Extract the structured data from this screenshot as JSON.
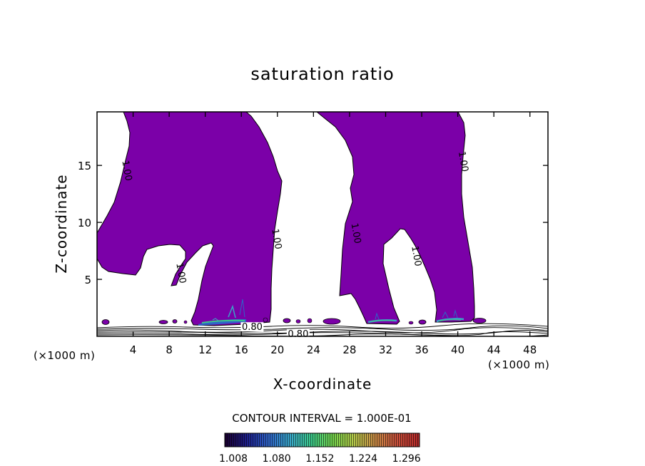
{
  "chart_data": {
    "type": "contour",
    "title": "saturation ratio",
    "xlabel": "X-coordinate",
    "ylabel": "Z-coordinate",
    "x_unit": "(×1000 m)",
    "y_unit": "(×1000 m)",
    "xlim": [
      0,
      50
    ],
    "ylim": [
      0,
      19.7
    ],
    "x_ticks": [
      4,
      8,
      12,
      16,
      20,
      24,
      28,
      32,
      36,
      40,
      44,
      48
    ],
    "x_tick_labels": [
      "4",
      "8",
      "12",
      "16",
      "20",
      "24",
      "28",
      "32",
      "36",
      "40",
      "44",
      "48"
    ],
    "y_ticks": [
      5,
      10,
      15
    ],
    "y_tick_labels": [
      "5",
      "10",
      "15"
    ],
    "fill_color": "#7b00a8",
    "contour_interval_label": "CONTOUR INTERVAL = 1.000E-01",
    "contour_labels": [
      {
        "text": "1.00",
        "x": 3.0,
        "z": 14.5
      },
      {
        "text": "1.00",
        "x": 9.0,
        "z": 5.5
      },
      {
        "text": "1.00",
        "x": 19.6,
        "z": 8.5
      },
      {
        "text": "1.00",
        "x": 28.4,
        "z": 9.0
      },
      {
        "text": "1.00",
        "x": 35.1,
        "z": 7.0
      },
      {
        "text": "1.00",
        "x": 40.3,
        "z": 15.3
      },
      {
        "text": "0.80",
        "x": 17.2,
        "z": 0.8
      },
      {
        "text": "0.80",
        "x": 22.3,
        "z": 0.2
      }
    ],
    "colorbar": {
      "min": 1.008,
      "max": 1.332,
      "tick_labels": [
        "1.008",
        "1.080",
        "1.152",
        "1.224",
        "1.296"
      ],
      "colors": [
        "#1a0033",
        "#1e1f8c",
        "#2f64c8",
        "#39a6c8",
        "#3cc98a",
        "#73d24b",
        "#b5c84a",
        "#c88a46",
        "#c8503c",
        "#b42a2a"
      ]
    }
  }
}
